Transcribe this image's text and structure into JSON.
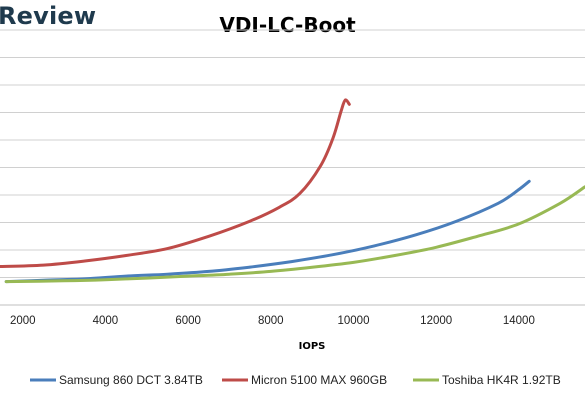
{
  "brand": "Review",
  "chart_data": {
    "type": "line",
    "title": "VDI-LC-Boot",
    "xlabel": "IOPS",
    "ylabel": "",
    "x_ticks": [
      2000,
      4000,
      6000,
      8000,
      10000,
      12000,
      14000
    ],
    "xlim": [
      1450,
      15600
    ],
    "ylim": [
      0,
      10
    ],
    "grid": "horizontal",
    "legend_position": "bottom",
    "series": [
      {
        "name": "Samsung 860 DCT 3.84TB",
        "color": "#4a7ebb",
        "points": [
          [
            1600,
            0.85
          ],
          [
            2500,
            0.9
          ],
          [
            3500,
            0.95
          ],
          [
            4500,
            1.05
          ],
          [
            5500,
            1.12
          ],
          [
            6500,
            1.22
          ],
          [
            7500,
            1.38
          ],
          [
            8500,
            1.58
          ],
          [
            9500,
            1.83
          ],
          [
            10500,
            2.15
          ],
          [
            11500,
            2.55
          ],
          [
            12500,
            3.05
          ],
          [
            13500,
            3.7
          ],
          [
            14000,
            4.2
          ],
          [
            14250,
            4.5
          ]
        ]
      },
      {
        "name": "Micron 5100 MAX 960GB",
        "color": "#be4b48",
        "points": [
          [
            1450,
            1.4
          ],
          [
            2500,
            1.45
          ],
          [
            3500,
            1.6
          ],
          [
            4500,
            1.8
          ],
          [
            5500,
            2.05
          ],
          [
            6500,
            2.5
          ],
          [
            7500,
            3.05
          ],
          [
            8200,
            3.55
          ],
          [
            8700,
            4.05
          ],
          [
            9200,
            5.05
          ],
          [
            9500,
            6.05
          ],
          [
            9700,
            7.05
          ],
          [
            9800,
            7.45
          ],
          [
            9900,
            7.3
          ]
        ]
      },
      {
        "name": "Toshiba HK4R 1.92TB",
        "color": "#98b954",
        "points": [
          [
            1600,
            0.85
          ],
          [
            3000,
            0.88
          ],
          [
            4000,
            0.92
          ],
          [
            5000,
            0.98
          ],
          [
            6000,
            1.05
          ],
          [
            7000,
            1.12
          ],
          [
            8000,
            1.22
          ],
          [
            9000,
            1.37
          ],
          [
            10000,
            1.55
          ],
          [
            11000,
            1.8
          ],
          [
            12000,
            2.1
          ],
          [
            13000,
            2.5
          ],
          [
            14000,
            2.95
          ],
          [
            15000,
            3.7
          ],
          [
            15600,
            4.3
          ]
        ]
      }
    ]
  }
}
